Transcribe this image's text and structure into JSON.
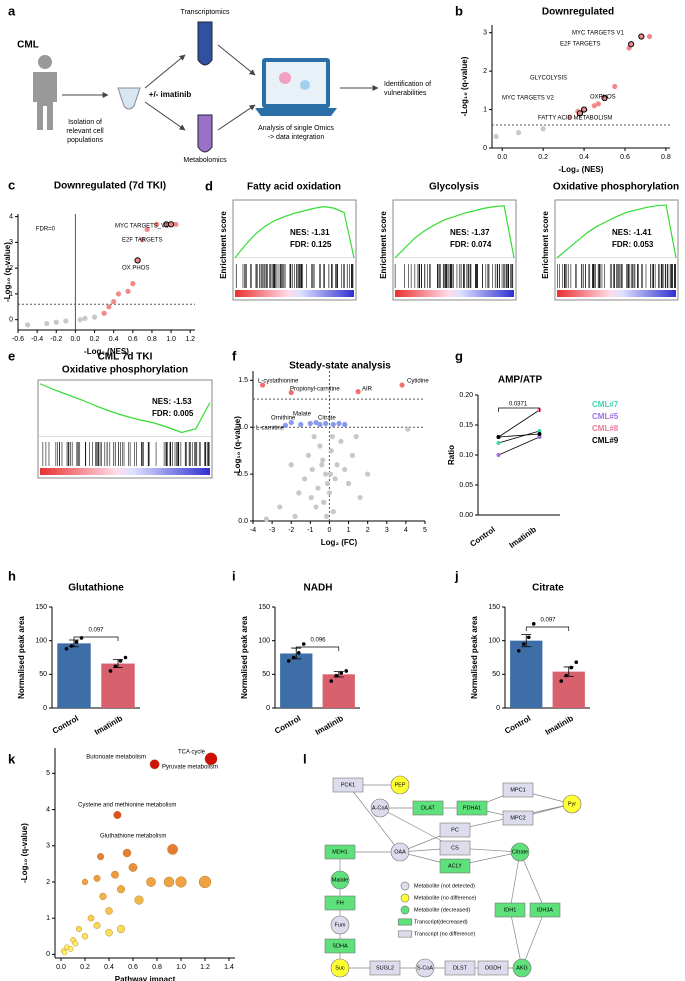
{
  "workflow": {
    "panel": "a",
    "subject": "CML",
    "isolation": [
      "Isolation of",
      "relevant cell",
      "populations"
    ],
    "treatment": "+/- imatinib",
    "omics": [
      "Transcriptomics",
      "Metabolomics"
    ],
    "analysis": [
      "Analysis of single Omics",
      "-> data integration"
    ],
    "result": [
      "Identification of",
      "vulnerabilities"
    ]
  },
  "chart_data": [
    {
      "panel": "b",
      "type": "scatter",
      "title": "Downregulated",
      "x_label": "-Log₂ (NES)",
      "y_label": "-Log₁₀ (q-value)",
      "xlim": [
        -0.05,
        0.82
      ],
      "xticks": [
        {
          "value": 0,
          "label": "0.0"
        },
        0.2,
        0.4,
        0.6,
        0.8
      ],
      "ylim": [
        0,
        3.2
      ],
      "yticks": [
        0,
        1,
        2,
        3
      ],
      "hlines": [
        0.6
      ],
      "series": [
        {
          "color": "#c8c8c8",
          "x": [
            -0.03,
            0.08,
            0.2
          ],
          "values": [
            0.3,
            0.4,
            0.5
          ]
        },
        {
          "color": "#f08a8a",
          "x": [
            0.33,
            0.37,
            0.45,
            0.47,
            0.55,
            0.62,
            0.72
          ],
          "values": [
            0.8,
            0.95,
            1.1,
            1.15,
            1.6,
            2.6,
            2.9
          ]
        },
        {
          "color": "#f08a8a",
          "outline": "#000000",
          "x": [
            0.38,
            0.4,
            0.5,
            0.63,
            0.68
          ],
          "values": [
            0.9,
            1.0,
            1.3,
            2.7,
            2.9
          ]
        }
      ],
      "annotations": [
        "MYC TARGETS V1",
        "E2F TARGETS",
        "GLYCOLYSIS",
        "OXPHOS",
        "MYC TARGETS V2",
        "FATTY ACID METABOLISM"
      ]
    },
    {
      "panel": "c",
      "type": "scatter",
      "title": "Downregulated (7d TKI)",
      "x_label": "-Log₂ (NES)",
      "y_label": "-Log₁₀ (q-value)",
      "xlim": [
        -0.6,
        1.25
      ],
      "xticks": [
        -0.6,
        -0.4,
        -0.2,
        {
          "value": 0,
          "label": "0.0"
        },
        0.2,
        0.4,
        0.6,
        0.8,
        {
          "value": 1,
          "label": "1.0"
        },
        1.2
      ],
      "ylim": [
        -0.4,
        4.1
      ],
      "yticks": [
        0,
        1,
        2,
        3,
        4
      ],
      "hlines": [
        0.6
      ],
      "vlines": [
        0
      ],
      "series": [
        {
          "color": "#c8c8c8",
          "x": [
            -0.5,
            -0.3,
            -0.2,
            -0.1,
            0.05,
            0.1,
            0.2
          ],
          "values": [
            -0.2,
            -0.15,
            -0.1,
            -0.05,
            0,
            0.05,
            0.1
          ]
        },
        {
          "color": "#f08a8a",
          "x": [
            0.3,
            0.35,
            0.4,
            0.45,
            0.55,
            0.6,
            0.7,
            0.75,
            0.85,
            1.05
          ],
          "values": [
            0.25,
            0.5,
            0.7,
            1.0,
            1.1,
            1.4,
            3.1,
            3.5,
            3.7,
            3.7
          ]
        },
        {
          "color": "#f08a8a",
          "outline": "#000000",
          "x": [
            0.65,
            0.95,
            1.0
          ],
          "values": [
            2.3,
            3.7,
            3.7
          ]
        }
      ],
      "annotations": [
        "MYC TARGETS_V1",
        "E2F TARGETS",
        "OX PHOS",
        "FDR=0"
      ]
    },
    {
      "panel": "d",
      "type": "line",
      "title": "Fatty acid oxidation",
      "y_label": "Enrichment score",
      "color": "#33dd33",
      "ylim": [
        -0.05,
        0.7
      ],
      "values": [
        0,
        0.15,
        0.28,
        0.38,
        0.45,
        0.5,
        0.54,
        0.57,
        0.6,
        0.62,
        0.6,
        0.55,
        0
      ],
      "annotations": [
        "NES: -1.31",
        "FDR: 0.125"
      ]
    },
    {
      "type": "line",
      "title": "Glycolysis",
      "y_label": "Enrichment score",
      "color": "#33dd33",
      "ylim": [
        -0.05,
        0.7
      ],
      "values": [
        0,
        0.12,
        0.24,
        0.33,
        0.4,
        0.46,
        0.5,
        0.54,
        0.57,
        0.6,
        0.62,
        0.63,
        0
      ],
      "annotations": [
        "NES: -1.37",
        "FDR: 0.074"
      ]
    },
    {
      "type": "line",
      "title": "Oxidative phosphorylation",
      "y_label": "Enrichment score",
      "color": "#33dd33",
      "ylim": [
        -0.05,
        0.7
      ],
      "values": [
        0,
        0.1,
        0.2,
        0.3,
        0.38,
        0.44,
        0.5,
        0.55,
        0.58,
        0.61,
        0.63,
        0.64,
        0
      ],
      "annotations": [
        "NES: -1.41",
        "FDR: 0.053"
      ]
    },
    {
      "panel": "e",
      "type": "line",
      "title": "CML 7d TKI",
      "subtitle": "Oxidative phosphorylation",
      "color": "#33dd33",
      "ylim": [
        -0.05,
        0.75
      ],
      "values": [
        0.7,
        0.62,
        0.55,
        0.48,
        0.4,
        0.33,
        0.27,
        0.22,
        0.18,
        0.12,
        0.05,
        0.1,
        0.45
      ],
      "annotations": [
        "NES: -1.53",
        "FDR: 0.005"
      ]
    },
    {
      "panel": "f",
      "type": "scatter",
      "title": "Steady-state analysis",
      "x_label": "Log₂ (FC)",
      "y_label": "-Log₁₀ (q-value)",
      "xlim": [
        -4,
        5
      ],
      "xticks": [
        -4,
        -3,
        -2,
        -1,
        0,
        1,
        2,
        3,
        4,
        5
      ],
      "ylim": [
        0,
        1.6
      ],
      "yticks": [
        {
          "value": 0,
          "label": "0.0"
        },
        0.5,
        {
          "value": 1,
          "label": "1.0"
        },
        1.5
      ],
      "hlines": [
        1.3,
        1.0
      ],
      "vlines": [
        0
      ],
      "series": [
        {
          "color": "#c8c8c8",
          "x": [
            -3.3,
            -2.6,
            -2.0,
            -1.6,
            -1.3,
            -1.1,
            -0.9,
            -0.8,
            -0.6,
            -0.5,
            -0.4,
            -0.3,
            -0.2,
            -0.1,
            0,
            0.1,
            0.2,
            0.3,
            0.4,
            0.6,
            0.8,
            1.0,
            1.2,
            1.4,
            1.6,
            2.0,
            -0.7,
            -0.35,
            -0.15,
            0.05,
            4.1,
            -1.8,
            -0.95,
            0.15
          ],
          "values": [
            0.02,
            0.15,
            0.6,
            0.3,
            0.45,
            0.7,
            0.55,
            0.9,
            0.35,
            0.8,
            0.6,
            0.2,
            0.5,
            0.4,
            0.3,
            0.75,
            0.1,
            0.45,
            0.6,
            0.85,
            0.55,
            0.4,
            0.7,
            0.9,
            0.25,
            0.5,
            0.15,
            0.65,
            0.05,
            0.5,
            0.98,
            0.05,
            0.25,
            0.9
          ]
        },
        {
          "color": "#f07070",
          "x": [
            -3.5,
            -2.0,
            1.5,
            3.8
          ],
          "values": [
            1.45,
            1.37,
            1.38,
            1.45
          ]
        },
        {
          "color": "#8899ee",
          "x": [
            -2.3,
            -2.0,
            -1.5,
            -1.0,
            -0.7,
            -0.5,
            -0.2,
            0.2,
            0.5,
            0.8
          ],
          "values": [
            1.02,
            1.05,
            1.03,
            1.04,
            1.05,
            1.03,
            1.04,
            1.03,
            1.04,
            1.03
          ]
        }
      ],
      "annotations": [
        "L-cystathionine",
        "Propionyl-carnitine",
        "AIR",
        "Cytidine",
        "Ornithine",
        "Malate",
        "Citrate",
        "L-carnitine"
      ]
    },
    {
      "panel": "g",
      "type": "line",
      "title": "AMP/ATP",
      "y_label": "Ratio",
      "categories": [
        "Control",
        "Imatinib"
      ],
      "ylim": [
        0,
        0.2
      ],
      "yticks": [
        {
          "value": 0,
          "label": "0.00"
        },
        0.05,
        {
          "value": 0.1,
          "label": "0.10"
        },
        0.15,
        {
          "value": 0.2,
          "label": "0.20"
        }
      ],
      "series": [
        {
          "name": "CML#7",
          "color": "#3ed6b0",
          "values": [
            0.12,
            0.14
          ]
        },
        {
          "name": "CML#5",
          "color": "#a070e0",
          "values": [
            0.1,
            0.13
          ]
        },
        {
          "name": "CML#8",
          "color": "#f07a9a",
          "values": [
            0.13,
            0.175
          ]
        },
        {
          "name": "CML#9",
          "color": "#000000",
          "values": [
            0.13,
            0.135
          ]
        }
      ],
      "annotations": [
        "0.0371"
      ]
    },
    {
      "panel": "h",
      "type": "bar",
      "title": "Glutathione",
      "y_label": "Normalised peak area",
      "categories": [
        "Control",
        "Imatinib"
      ],
      "values": [
        96,
        66
      ],
      "errors": [
        5,
        6
      ],
      "colors": [
        "#3e6ea8",
        "#d9606d"
      ],
      "points": [
        [
          88,
          92,
          98,
          104
        ],
        [
          55,
          62,
          70,
          75
        ]
      ],
      "ylim": [
        0,
        150
      ],
      "yticks": [
        0,
        50,
        100,
        150
      ],
      "annotations": [
        "0.097"
      ]
    },
    {
      "panel": "i",
      "type": "bar",
      "title": "NADH",
      "y_label": "Normalised peak area",
      "categories": [
        "Control",
        "Imatinib"
      ],
      "values": [
        81,
        50
      ],
      "errors": [
        8,
        4
      ],
      "colors": [
        "#3e6ea8",
        "#d9606d"
      ],
      "points": [
        [
          70,
          75,
          82,
          95
        ],
        [
          40,
          48,
          52,
          55
        ]
      ],
      "ylim": [
        0,
        150
      ],
      "yticks": [
        0,
        50,
        100,
        150
      ],
      "annotations": [
        "0.096"
      ]
    },
    {
      "panel": "j",
      "type": "bar",
      "title": "Citrate",
      "y_label": "Normalised peak area",
      "categories": [
        "Control",
        "Imatinib"
      ],
      "values": [
        100,
        54
      ],
      "errors": [
        9,
        7
      ],
      "colors": [
        "#3e6ea8",
        "#d9606d"
      ],
      "points": [
        [
          85,
          95,
          105,
          125
        ],
        [
          40,
          48,
          60,
          68
        ]
      ],
      "ylim": [
        0,
        150
      ],
      "yticks": [
        0,
        50,
        100,
        150
      ],
      "annotations": [
        "0.097"
      ]
    },
    {
      "panel": "k",
      "type": "scatter",
      "x_label": "Pathway impact",
      "y_label": "-Log₁₀ (q-value)",
      "color_scale": [
        "#ffff66",
        "#cc0000"
      ],
      "xlim": [
        -0.05,
        1.45
      ],
      "xticks": [
        {
          "value": 0,
          "label": "0.0"
        },
        0.2,
        0.4,
        0.6,
        0.8,
        {
          "value": 1,
          "label": "1.0"
        },
        1.2,
        1.4
      ],
      "ylim": [
        -0.1,
        5.7
      ],
      "yticks": [
        0,
        1,
        2,
        3,
        4,
        5
      ],
      "series": [
        {
          "x": [
            0.78,
            1.25,
            0.47,
            0.93,
            0.33,
            0.55,
            0.2,
            0.3,
            0.45,
            0.6,
            0.75,
            1.0,
            1.2,
            0.9,
            0.5,
            0.35,
            0.4,
            0.25,
            0.3,
            0.15,
            0.2,
            0.1,
            0.05,
            0.02,
            0.08,
            0.12,
            0.03,
            0.4,
            0.5,
            0.65
          ],
          "values": [
            5.25,
            5.4,
            3.85,
            2.9,
            2.7,
            2.8,
            2.0,
            2.1,
            2.2,
            2.4,
            2.0,
            2.0,
            2.0,
            2.0,
            1.8,
            1.6,
            1.2,
            1.0,
            0.8,
            0.7,
            0.5,
            0.4,
            0.2,
            0.1,
            0.15,
            0.3,
            0.05,
            0.6,
            0.7,
            1.5
          ]
        }
      ],
      "annotations": [
        "Butonoate metabolism",
        "TCA cycle",
        "Pyruvate metabolism",
        "Cysteine and methionine metabolism",
        "Gluthathione metabolism"
      ]
    }
  ],
  "pathway": {
    "panel": "l",
    "nodes": [
      {
        "label": "PCK1",
        "shape": "rect",
        "color": "#dcdcec"
      },
      {
        "label": "PEP",
        "shape": "circle",
        "color": "#ffff33"
      },
      {
        "label": "A-CoA",
        "shape": "circle",
        "color": "#dcdcec"
      },
      {
        "label": "DLAT",
        "shape": "rect",
        "color": "#5ee07a"
      },
      {
        "label": "PDHA1",
        "shape": "rect",
        "color": "#5ee07a"
      },
      {
        "label": "MPC1",
        "shape": "rect",
        "color": "#dcdcec"
      },
      {
        "label": "MPC2",
        "shape": "rect",
        "color": "#dcdcec"
      },
      {
        "label": "Pyr",
        "shape": "circle",
        "color": "#ffff33"
      },
      {
        "label": "PC",
        "shape": "rect",
        "color": "#dcdcec"
      },
      {
        "label": "OAA",
        "shape": "circle",
        "color": "#dcdcec"
      },
      {
        "label": "CS",
        "shape": "rect",
        "color": "#dcdcec"
      },
      {
        "label": "ACLY",
        "shape": "rect",
        "color": "#5ee07a"
      },
      {
        "label": "MDH1",
        "shape": "rect",
        "color": "#5ee07a"
      },
      {
        "label": "Citrate",
        "shape": "circle",
        "color": "#5ee07a"
      },
      {
        "label": "Malate",
        "shape": "circle",
        "color": "#5ee07a"
      },
      {
        "label": "FH",
        "shape": "rect",
        "color": "#5ee07a"
      },
      {
        "label": "Fum",
        "shape": "circle",
        "color": "#dcdcec"
      },
      {
        "label": "SDHA",
        "shape": "rect",
        "color": "#5ee07a"
      },
      {
        "label": "Suc",
        "shape": "circle",
        "color": "#ffff33"
      },
      {
        "label": "SUGL2",
        "shape": "rect",
        "color": "#dcdcec"
      },
      {
        "label": "S-CoA",
        "shape": "circle",
        "color": "#dcdcec"
      },
      {
        "label": "DLST",
        "shape": "rect",
        "color": "#dcdcec"
      },
      {
        "label": "OGDH",
        "shape": "rect",
        "color": "#dcdcec"
      },
      {
        "label": "AKG",
        "shape": "circle",
        "color": "#5ee07a"
      },
      {
        "label": "IDH1",
        "shape": "rect",
        "color": "#5ee07a"
      },
      {
        "label": "IDH3A",
        "shape": "rect",
        "color": "#5ee07a"
      }
    ],
    "legend": [
      {
        "label": "Metabolite (not detected)",
        "shape": "circle",
        "color": "#dcdcec"
      },
      {
        "label": "Metabolite (no difference)",
        "shape": "circle",
        "color": "#ffff33"
      },
      {
        "label": "Metabolite (decreased)",
        "shape": "circle",
        "color": "#5ee07a"
      },
      {
        "label": "Transcript(decreased)",
        "shape": "rect",
        "color": "#5ee07a"
      },
      {
        "label": "Transcript (no difference)",
        "shape": "rect",
        "color": "#dcdcec"
      }
    ]
  }
}
